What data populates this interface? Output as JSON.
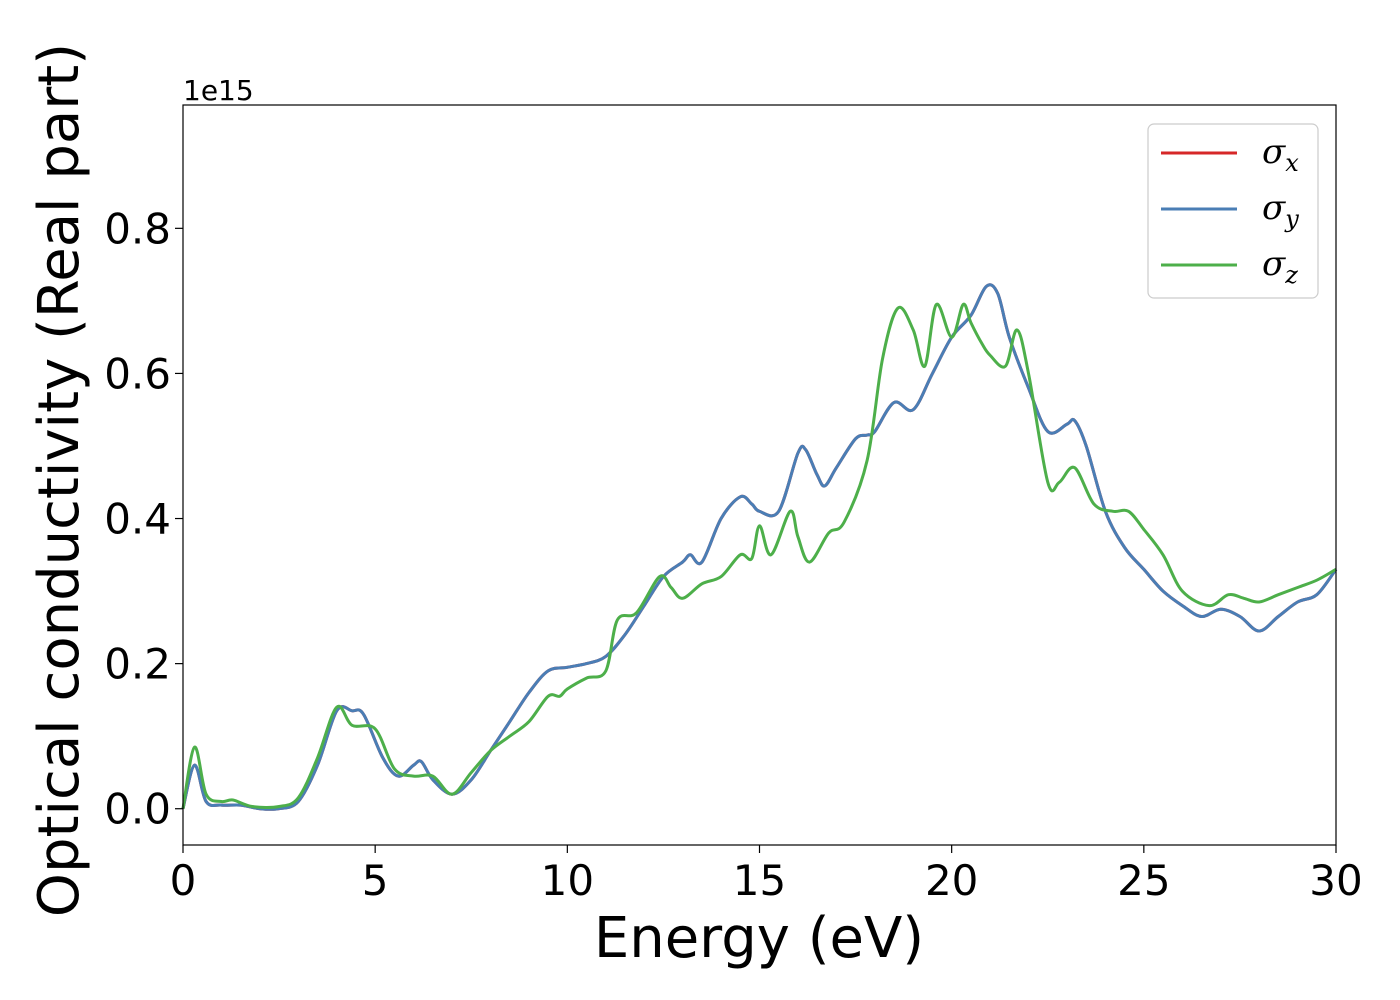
{
  "chart_data": {
    "type": "line",
    "title": "",
    "xlabel": "Energy (eV)",
    "ylabel": "Optical conductivity (Real part)",
    "offset_text": "1e15",
    "xlim": [
      0,
      30
    ],
    "ylim": [
      -0.05,
      0.97
    ],
    "xticks": [
      0,
      5,
      10,
      15,
      20,
      25,
      30
    ],
    "yticks": [
      0.0,
      0.2,
      0.4,
      0.6,
      0.8
    ],
    "xtick_labels": [
      "0",
      "5",
      "10",
      "15",
      "20",
      "25",
      "30"
    ],
    "ytick_labels": [
      "0.0",
      "0.2",
      "0.4",
      "0.6",
      "0.8"
    ],
    "grid": false,
    "legend_position": "top-right",
    "series": [
      {
        "name": "x",
        "color": "#d62728",
        "x": [
          0,
          0.3,
          0.6,
          1.0,
          1.5,
          2.0,
          2.5,
          3.0,
          3.5,
          4.0,
          4.4,
          4.7,
          5.2,
          5.6,
          6.0,
          6.2,
          6.5,
          7.0,
          7.5,
          8.0,
          8.5,
          9.0,
          9.5,
          10.0,
          10.5,
          11.0,
          11.5,
          12.0,
          12.5,
          13.0,
          13.2,
          13.5,
          14.0,
          14.5,
          14.8,
          15.0,
          15.5,
          16.0,
          16.2,
          16.5,
          16.7,
          17.0,
          17.5,
          17.8,
          18.0,
          18.5,
          19.0,
          19.5,
          20.0,
          20.5,
          20.9,
          21.2,
          21.5,
          22.0,
          22.5,
          23.0,
          23.2,
          23.5,
          24.0,
          24.5,
          25.0,
          25.5,
          26.0,
          26.5,
          27.0,
          27.5,
          28.0,
          28.5,
          29.0,
          29.5,
          30.0
        ],
        "values": [
          0.0,
          0.06,
          0.01,
          0.005,
          0.005,
          0.0,
          0.0,
          0.01,
          0.06,
          0.135,
          0.135,
          0.13,
          0.07,
          0.045,
          0.06,
          0.065,
          0.04,
          0.02,
          0.04,
          0.08,
          0.12,
          0.16,
          0.19,
          0.195,
          0.2,
          0.21,
          0.24,
          0.28,
          0.32,
          0.34,
          0.35,
          0.34,
          0.4,
          0.43,
          0.42,
          0.41,
          0.41,
          0.49,
          0.495,
          0.46,
          0.445,
          0.47,
          0.51,
          0.515,
          0.52,
          0.56,
          0.55,
          0.6,
          0.65,
          0.68,
          0.72,
          0.71,
          0.65,
          0.58,
          0.52,
          0.53,
          0.535,
          0.5,
          0.41,
          0.36,
          0.33,
          0.3,
          0.28,
          0.265,
          0.275,
          0.265,
          0.245,
          0.265,
          0.285,
          0.295,
          0.33
        ]
      },
      {
        "name": "y",
        "color": "#4a7eb5",
        "x": [
          0,
          0.3,
          0.6,
          1.0,
          1.5,
          2.0,
          2.5,
          3.0,
          3.5,
          4.0,
          4.4,
          4.7,
          5.2,
          5.6,
          6.0,
          6.2,
          6.5,
          7.0,
          7.5,
          8.0,
          8.5,
          9.0,
          9.5,
          10.0,
          10.5,
          11.0,
          11.5,
          12.0,
          12.5,
          13.0,
          13.2,
          13.5,
          14.0,
          14.5,
          14.8,
          15.0,
          15.5,
          16.0,
          16.2,
          16.5,
          16.7,
          17.0,
          17.5,
          17.8,
          18.0,
          18.5,
          19.0,
          19.5,
          20.0,
          20.5,
          20.9,
          21.2,
          21.5,
          22.0,
          22.5,
          23.0,
          23.2,
          23.5,
          24.0,
          24.5,
          25.0,
          25.5,
          26.0,
          26.5,
          27.0,
          27.5,
          28.0,
          28.5,
          29.0,
          29.5,
          30.0
        ],
        "values": [
          0.0,
          0.06,
          0.01,
          0.005,
          0.005,
          0.0,
          0.0,
          0.01,
          0.06,
          0.135,
          0.135,
          0.13,
          0.07,
          0.045,
          0.06,
          0.065,
          0.04,
          0.02,
          0.04,
          0.08,
          0.12,
          0.16,
          0.19,
          0.195,
          0.2,
          0.21,
          0.24,
          0.28,
          0.32,
          0.34,
          0.35,
          0.34,
          0.4,
          0.43,
          0.42,
          0.41,
          0.41,
          0.49,
          0.495,
          0.46,
          0.445,
          0.47,
          0.51,
          0.515,
          0.52,
          0.56,
          0.55,
          0.6,
          0.65,
          0.68,
          0.72,
          0.71,
          0.65,
          0.58,
          0.52,
          0.53,
          0.535,
          0.5,
          0.41,
          0.36,
          0.33,
          0.3,
          0.28,
          0.265,
          0.275,
          0.265,
          0.245,
          0.265,
          0.285,
          0.295,
          0.33
        ]
      },
      {
        "name": "z",
        "color": "#4daf4a",
        "x": [
          0,
          0.3,
          0.6,
          1.0,
          1.3,
          1.8,
          2.5,
          3.0,
          3.5,
          4.0,
          4.4,
          5.0,
          5.5,
          6.0,
          6.5,
          7.0,
          7.5,
          8.0,
          8.5,
          9.0,
          9.5,
          9.8,
          10.0,
          10.5,
          11.0,
          11.3,
          11.8,
          12.4,
          12.7,
          13.0,
          13.5,
          14.0,
          14.5,
          14.8,
          15.0,
          15.3,
          15.8,
          16.0,
          16.3,
          16.8,
          17.2,
          17.8,
          18.2,
          18.6,
          19.0,
          19.3,
          19.6,
          20.0,
          20.3,
          20.5,
          20.8,
          21.0,
          21.4,
          21.7,
          22.0,
          22.5,
          22.8,
          23.2,
          23.7,
          24.2,
          24.6,
          25.0,
          25.5,
          26.0,
          26.7,
          27.2,
          27.6,
          28.0,
          28.5,
          29.0,
          29.5,
          30.0
        ],
        "values": [
          0.0,
          0.085,
          0.02,
          0.01,
          0.012,
          0.003,
          0.003,
          0.015,
          0.07,
          0.14,
          0.115,
          0.11,
          0.055,
          0.045,
          0.045,
          0.02,
          0.05,
          0.08,
          0.1,
          0.12,
          0.155,
          0.155,
          0.165,
          0.18,
          0.19,
          0.26,
          0.27,
          0.32,
          0.305,
          0.29,
          0.31,
          0.32,
          0.35,
          0.345,
          0.39,
          0.35,
          0.41,
          0.375,
          0.34,
          0.38,
          0.395,
          0.48,
          0.62,
          0.69,
          0.66,
          0.61,
          0.695,
          0.65,
          0.695,
          0.67,
          0.64,
          0.625,
          0.61,
          0.66,
          0.6,
          0.45,
          0.45,
          0.47,
          0.42,
          0.41,
          0.41,
          0.385,
          0.35,
          0.3,
          0.28,
          0.295,
          0.29,
          0.285,
          0.295,
          0.305,
          0.315,
          0.33
        ]
      }
    ]
  },
  "legend": {
    "symbol": "σ",
    "items": [
      {
        "sub": "x",
        "color": "#d62728"
      },
      {
        "sub": "y",
        "color": "#4a7eb5"
      },
      {
        "sub": "z",
        "color": "#4daf4a"
      }
    ]
  }
}
